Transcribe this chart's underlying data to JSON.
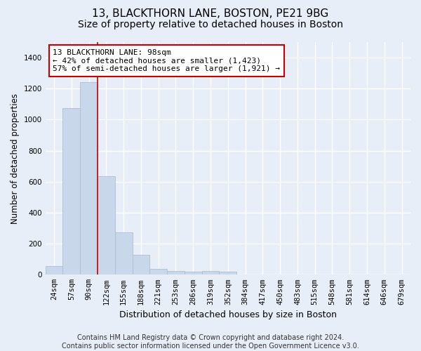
{
  "title1": "13, BLACKTHORN LANE, BOSTON, PE21 9BG",
  "title2": "Size of property relative to detached houses in Boston",
  "xlabel": "Distribution of detached houses by size in Boston",
  "ylabel": "Number of detached properties",
  "categories": [
    "24sqm",
    "57sqm",
    "90sqm",
    "122sqm",
    "155sqm",
    "188sqm",
    "221sqm",
    "253sqm",
    "286sqm",
    "319sqm",
    "352sqm",
    "384sqm",
    "417sqm",
    "450sqm",
    "483sqm",
    "515sqm",
    "548sqm",
    "581sqm",
    "614sqm",
    "646sqm",
    "679sqm"
  ],
  "values": [
    55,
    1075,
    1240,
    635,
    275,
    130,
    38,
    22,
    18,
    22,
    18,
    0,
    0,
    0,
    0,
    0,
    0,
    0,
    0,
    0,
    0
  ],
  "bar_color": "#c8d8ea",
  "bar_edge_color": "#aabfd4",
  "property_line_x": 2.5,
  "property_line_color": "#cc0000",
  "annotation_text": "13 BLACKTHORN LANE: 98sqm\n← 42% of detached houses are smaller (1,423)\n57% of semi-detached houses are larger (1,921) →",
  "annotation_box_facecolor": "#ffffff",
  "annotation_box_edgecolor": "#cc0000",
  "ylim": [
    0,
    1500
  ],
  "yticks": [
    0,
    200,
    400,
    600,
    800,
    1000,
    1200,
    1400
  ],
  "footer": "Contains HM Land Registry data © Crown copyright and database right 2024.\nContains public sector information licensed under the Open Government Licence v3.0.",
  "background_color": "#e8eef8",
  "plot_bg_color": "#e8eef8",
  "grid_color": "#ffffff",
  "title1_fontsize": 11,
  "title2_fontsize": 10,
  "xlabel_fontsize": 9,
  "ylabel_fontsize": 8.5,
  "tick_fontsize": 7.5,
  "annotation_fontsize": 8,
  "footer_fontsize": 7
}
